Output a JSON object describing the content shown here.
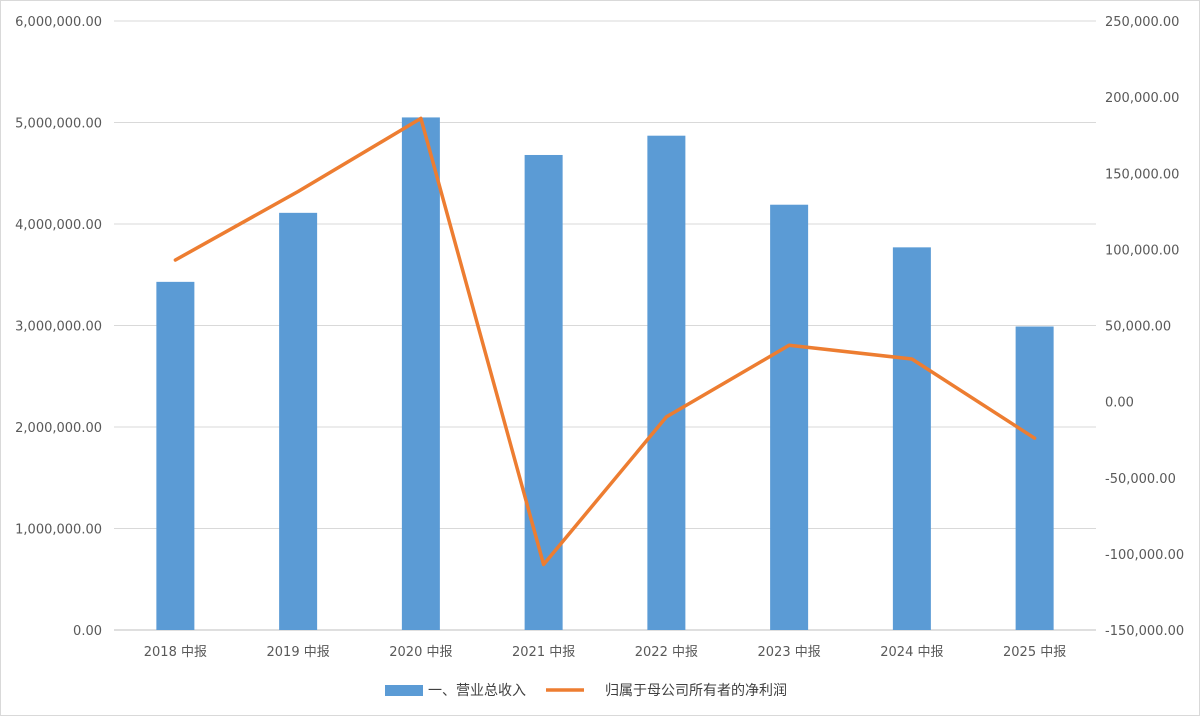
{
  "chart_data": {
    "type": "bar+line",
    "categories": [
      "2018 中报",
      "2019 中报",
      "2020 中报",
      "2021 中报",
      "2022 中报",
      "2023 中报",
      "2024 中报",
      "2025 中报"
    ],
    "series": [
      {
        "name": "一、营业总收入",
        "type": "bar",
        "axis": "left",
        "color": "#5b9bd5",
        "values": [
          3430000,
          4110000,
          5050000,
          4680000,
          4870000,
          4190000,
          3770000,
          2990000
        ]
      },
      {
        "name": "归属于母公司所有者的净利润",
        "type": "line",
        "axis": "right",
        "color": "#ed7d31",
        "values": [
          93000,
          138000,
          186000,
          -107000,
          -10000,
          37000,
          28000,
          -24000
        ]
      }
    ],
    "left_axis": {
      "min": 0,
      "max": 6000000,
      "ticks": [
        "0.00",
        "1,000,000.00",
        "2,000,000.00",
        "3,000,000.00",
        "4,000,000.00",
        "5,000,000.00",
        "6,000,000.00"
      ],
      "tick_values": [
        0,
        1000000,
        2000000,
        3000000,
        4000000,
        5000000,
        6000000
      ]
    },
    "right_axis": {
      "min": -150000,
      "max": 250000,
      "ticks": [
        "-150,000.00",
        "-100,000.00",
        "-50,000.00",
        "0.00",
        "50,000.00",
        "100,000.00",
        "150,000.00",
        "200,000.00",
        "250,000.00"
      ],
      "tick_values": [
        -150000,
        -100000,
        -50000,
        0,
        50000,
        100000,
        150000,
        200000,
        250000
      ]
    },
    "grid": true,
    "legend": "bottom"
  }
}
